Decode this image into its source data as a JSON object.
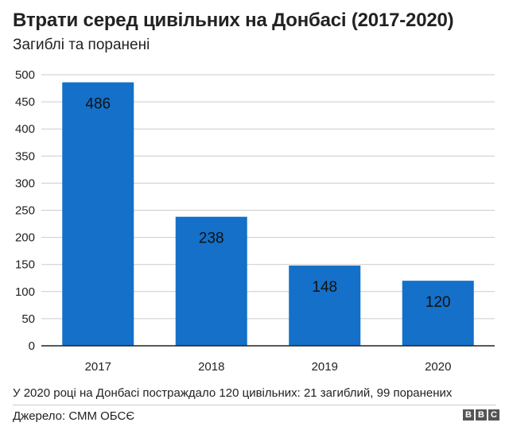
{
  "header": {
    "title": "Втрати серед цивільних на Донбасі (2017-2020)",
    "subtitle": "Загиблі та поранені"
  },
  "footer": {
    "note": "У 2020 році на Донбасі постраждало 120 цивільних: 21 загиблий, 99 поранених",
    "source": "Джерело: СММ ОБСЄ",
    "logo_letters": [
      "B",
      "B",
      "C"
    ]
  },
  "colors": {
    "bar": "#1470c8",
    "grid": "#cccccc",
    "axis": "#222222"
  },
  "chart_data": {
    "type": "bar",
    "title": "Втрати серед цивільних на Донбасі (2017-2020)",
    "subtitle": "Загиблі та поранені",
    "categories": [
      "2017",
      "2018",
      "2019",
      "2020"
    ],
    "values": [
      486,
      238,
      148,
      120
    ],
    "data_labels": [
      "486",
      "238",
      "148",
      "120"
    ],
    "ylim": [
      0,
      500
    ],
    "yticks": [
      0,
      50,
      100,
      150,
      200,
      250,
      300,
      350,
      400,
      450,
      500
    ],
    "grid": true,
    "xlabel": "",
    "ylabel": ""
  }
}
